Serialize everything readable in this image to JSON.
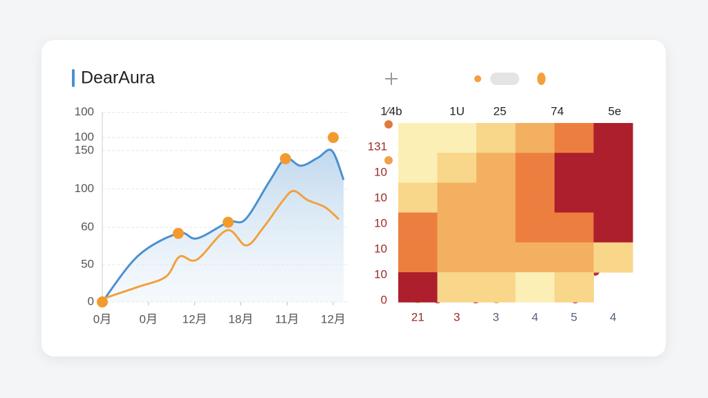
{
  "header": {
    "title": "DearAura"
  },
  "chart_data": [
    {
      "type": "line",
      "xlim": [
        0,
        10.6
      ],
      "xticks": [
        {
          "value": 0,
          "label": "0月"
        },
        {
          "value": 2,
          "label": "0月"
        },
        {
          "value": 4,
          "label": "12月"
        },
        {
          "value": 6,
          "label": "18月"
        },
        {
          "value": 8,
          "label": "11月"
        },
        {
          "value": 10,
          "label": "12月"
        }
      ],
      "ylim": [
        0,
        188
      ],
      "yticks": [
        {
          "value": 188,
          "label": "100"
        },
        {
          "value": 163,
          "label": "100"
        },
        150,
        {
          "value": 112,
          "label": "100"
        },
        {
          "value": 74,
          "label": "60"
        },
        {
          "value": 37,
          "label": "50"
        },
        0
      ],
      "grid": true,
      "series": [
        {
          "color": "#4a90d0",
          "area": true,
          "x": [
            0,
            1.56,
            3.29,
            4.1,
            5.45,
            6.2,
            7.25,
            7.93,
            8.6,
            9.34,
            9.94,
            10.45
          ],
          "values": [
            0,
            46,
            68,
            63,
            79,
            82,
            120,
            142,
            135,
            143,
            150,
            121
          ]
        },
        {
          "color": "#f2a03d",
          "area": false,
          "x": [
            0,
            1.56,
            2.75,
            3.35,
            4.1,
            5.39,
            6.23,
            6.95,
            7.84,
            8.29,
            8.89,
            9.64,
            10.24
          ],
          "values": [
            3,
            15,
            25,
            45,
            42,
            71,
            56,
            73,
            101,
            110,
            101,
            94,
            82
          ]
        }
      ],
      "markers": {
        "color": "#f39a2e",
        "x": [
          0,
          3.29,
          5.45,
          7.93,
          10
        ],
        "values": [
          0,
          68,
          79,
          142,
          163
        ]
      }
    },
    {
      "type": "heatmap",
      "top_labels": [
        "1⁄4b",
        "1U",
        "25",
        "74",
        "5e"
      ],
      "x_categories": [
        "21",
        "3",
        "3",
        "4",
        "5",
        "4"
      ],
      "y_categories": [
        "131",
        "10",
        "10",
        "10",
        "10",
        "10",
        "0"
      ],
      "colors": [
        "#fdf6d8",
        "#fbefb5",
        "#f8d68a",
        "#f3b060",
        "#ec7f3f",
        "#ad1f2c"
      ],
      "values": [
        [
          1,
          1,
          2,
          3,
          4,
          5
        ],
        [
          1,
          2,
          3,
          4,
          5,
          5
        ],
        [
          2,
          3,
          3,
          4,
          5,
          5
        ],
        [
          4,
          3,
          3,
          4,
          4,
          5
        ],
        [
          4,
          3,
          3,
          3,
          3,
          2
        ],
        [
          5,
          2,
          2,
          1,
          2,
          null
        ]
      ]
    }
  ]
}
